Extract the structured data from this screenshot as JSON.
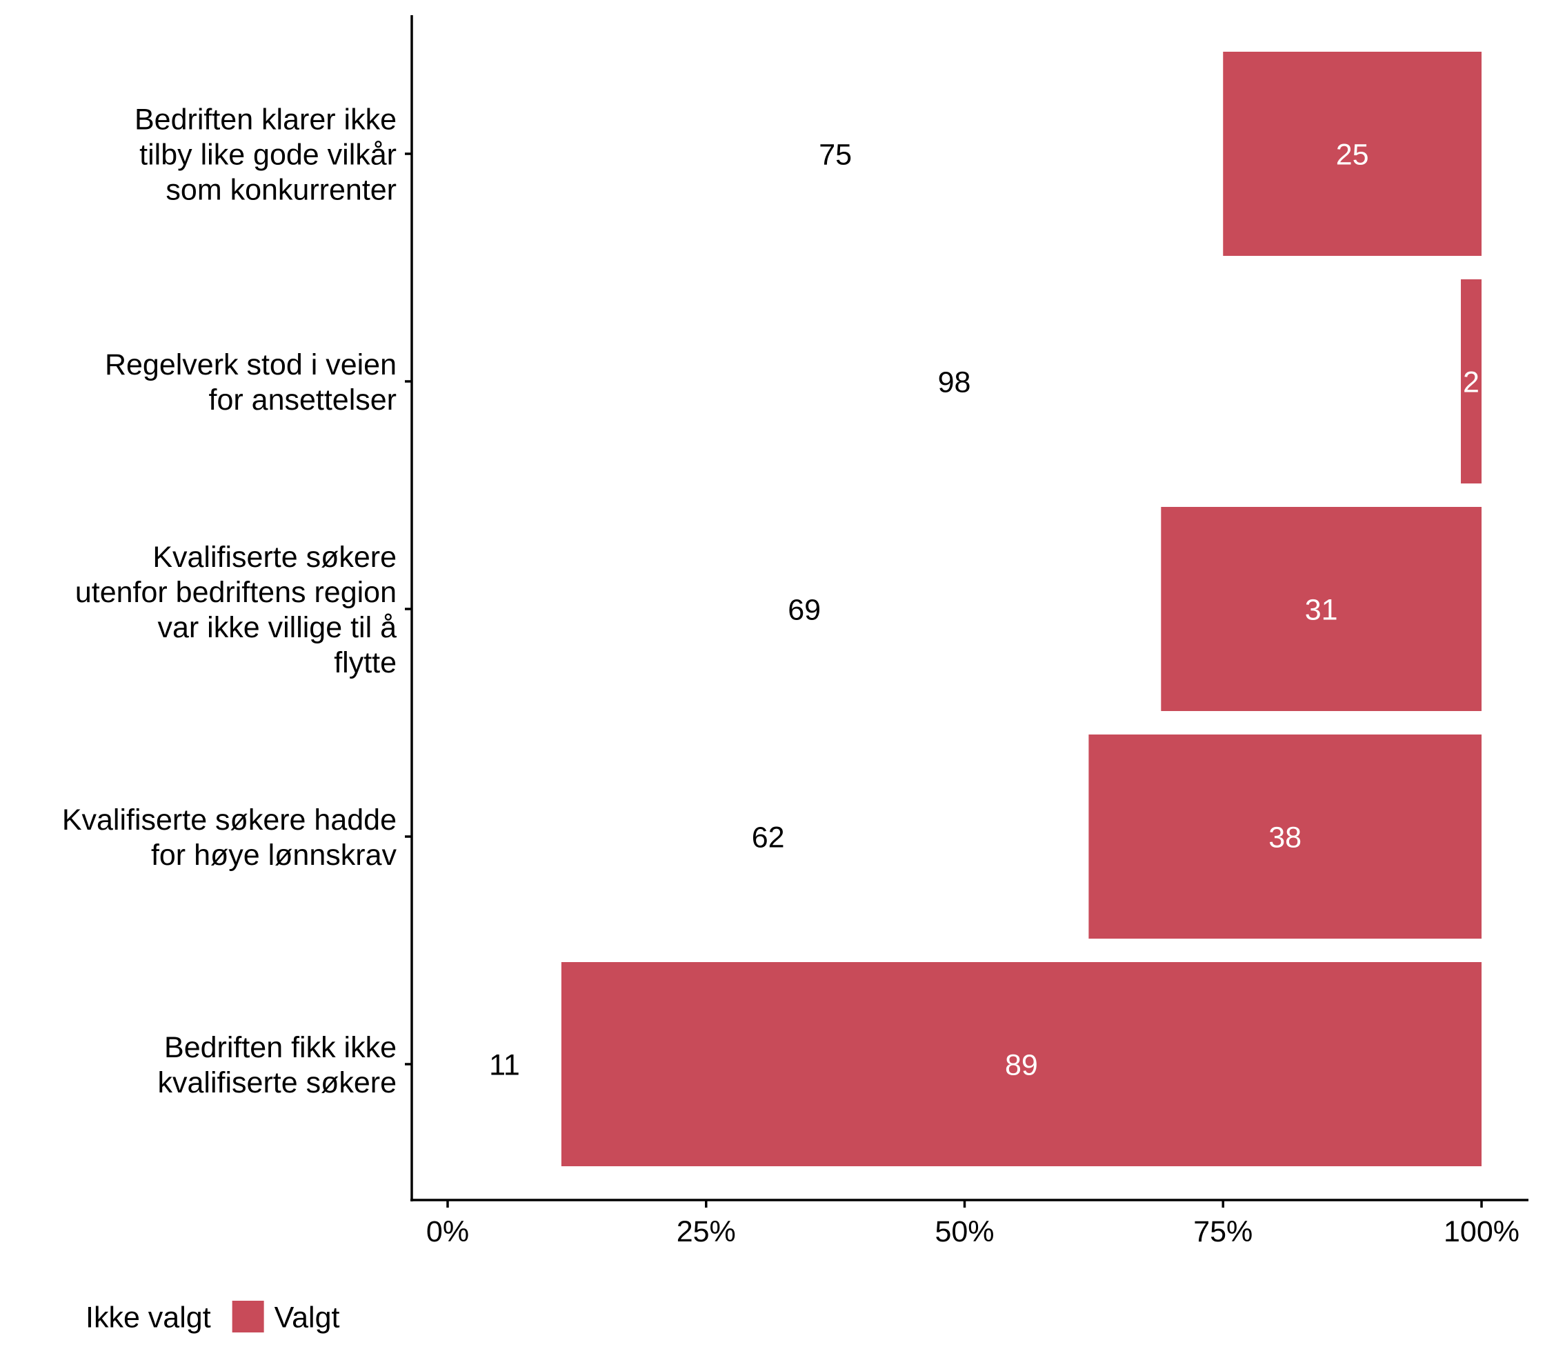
{
  "chart_data": {
    "type": "bar",
    "orientation": "horizontal",
    "stacked": true,
    "categories": [
      "Bedriften klarer ikke\ntilby like gode vilkår\nsom konkurrenter",
      "Regelverk stod i veien\nfor ansettelser",
      "Kvalifiserte søkere\nutenfor bedriftens region\nvar ikke villige til å\nflytte",
      "Kvalifiserte søkere hadde\nfor høye lønnskrav",
      "Bedriften fikk ikke\nkvalifiserte søkere"
    ],
    "series": [
      {
        "name": "Ikke valgt",
        "color": "#FFFFFF",
        "label_color": "#000000",
        "values": [
          75,
          98,
          69,
          62,
          11
        ]
      },
      {
        "name": "Valgt",
        "color": "#C84B59",
        "label_color": "#FFFFFF",
        "values": [
          25,
          2,
          31,
          38,
          89
        ]
      }
    ],
    "xlim": [
      0,
      100
    ],
    "x_ticks": [
      "0%",
      "25%",
      "50%",
      "75%",
      "100%"
    ],
    "x_tick_values": [
      0,
      25,
      50,
      75,
      100
    ],
    "xlabel": "",
    "ylabel": "",
    "grid": false,
    "legend_position": "bottom-left"
  }
}
